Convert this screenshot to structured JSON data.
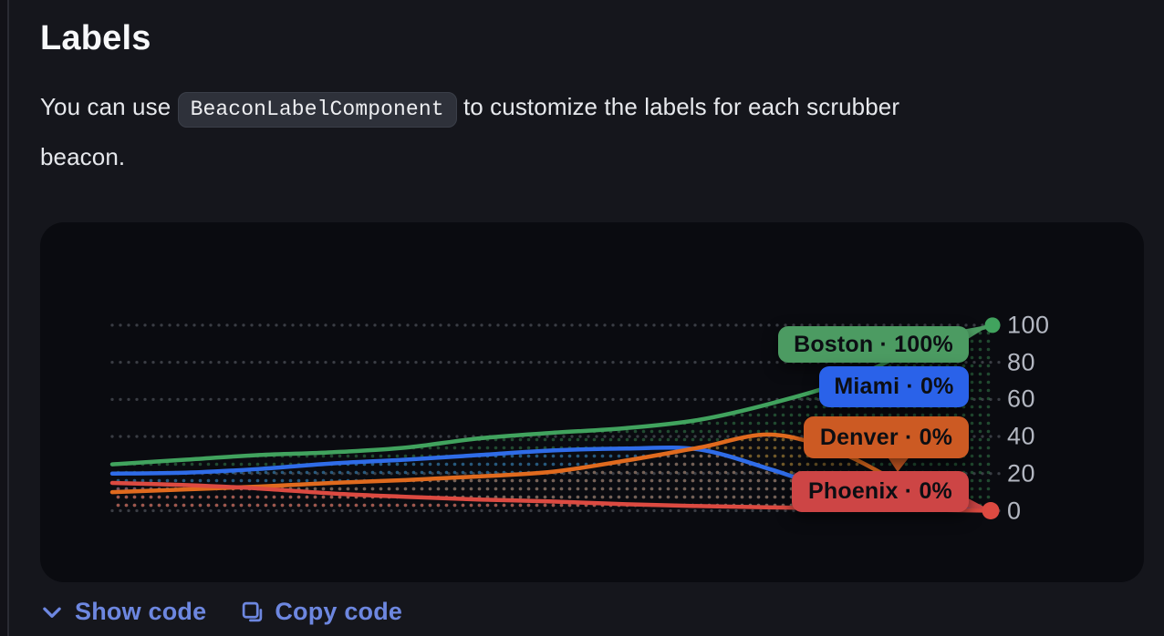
{
  "section": {
    "title": "Labels"
  },
  "intro": {
    "text_before_code": "You can use ",
    "code": "BeaconLabelComponent",
    "text_after_code": " to customize the labels for each scrubber",
    "text_line2": "beacon."
  },
  "actions": {
    "show_code": "Show code",
    "copy_code": "Copy code"
  },
  "colors": {
    "page_bg": "#15161c",
    "card_bg": "#0a0b10",
    "grid_dots": "#43464e",
    "ytick_text": "#b3b7c1",
    "link_blue": "#6d87e0",
    "pill_text": "#0c0e13"
  },
  "chart_data": {
    "type": "line",
    "title": "",
    "x": [
      0,
      1,
      2,
      3,
      4,
      5,
      6,
      7,
      8,
      9,
      10,
      11,
      12
    ],
    "x_axis_labels_visible": false,
    "ylim": [
      0,
      100
    ],
    "yticks": [
      100,
      80,
      60,
      40,
      20,
      0
    ],
    "grid": "dotted-horizontal",
    "area_fill": "dot-pattern",
    "legend": "beacon-labels-right",
    "series": [
      {
        "name": "Boston",
        "label": "Boston · 100%",
        "final_value_pct": 100,
        "color": "#41a35e",
        "label_bg": "#4c9b62",
        "values": [
          25,
          27.5,
          30,
          31.5,
          34,
          39,
          42,
          44.5,
          49,
          58,
          70,
          88,
          100
        ]
      },
      {
        "name": "Miami",
        "label": "Miami · 0%",
        "final_value_pct": 0,
        "color": "#2f6ce8",
        "label_bg": "#2a62e9",
        "values": [
          20,
          20.5,
          22.5,
          25.5,
          27.5,
          30,
          32.5,
          33.5,
          33,
          22,
          9,
          2,
          0
        ]
      },
      {
        "name": "Denver",
        "label": "Denver · 0%",
        "final_value_pct": 0,
        "color": "#e06a1e",
        "label_bg": "#cc5a23",
        "values": [
          10,
          11.5,
          13,
          15,
          16.5,
          18.5,
          21,
          27,
          34,
          41,
          30,
          10,
          0
        ]
      },
      {
        "name": "Phoenix",
        "label": "Phoenix · 0%",
        "final_value_pct": 0,
        "color": "#dc4a41",
        "label_bg": "#cd4545",
        "values": [
          15,
          13.8,
          12,
          9.3,
          7.5,
          6,
          5,
          3.5,
          2.5,
          1.8,
          1.3,
          0.6,
          0
        ]
      }
    ],
    "beacons": [
      {
        "series": "Boston",
        "value": 100,
        "position": "top-right"
      },
      {
        "series": "Phoenix",
        "value": 0,
        "position": "bottom-right"
      }
    ]
  }
}
